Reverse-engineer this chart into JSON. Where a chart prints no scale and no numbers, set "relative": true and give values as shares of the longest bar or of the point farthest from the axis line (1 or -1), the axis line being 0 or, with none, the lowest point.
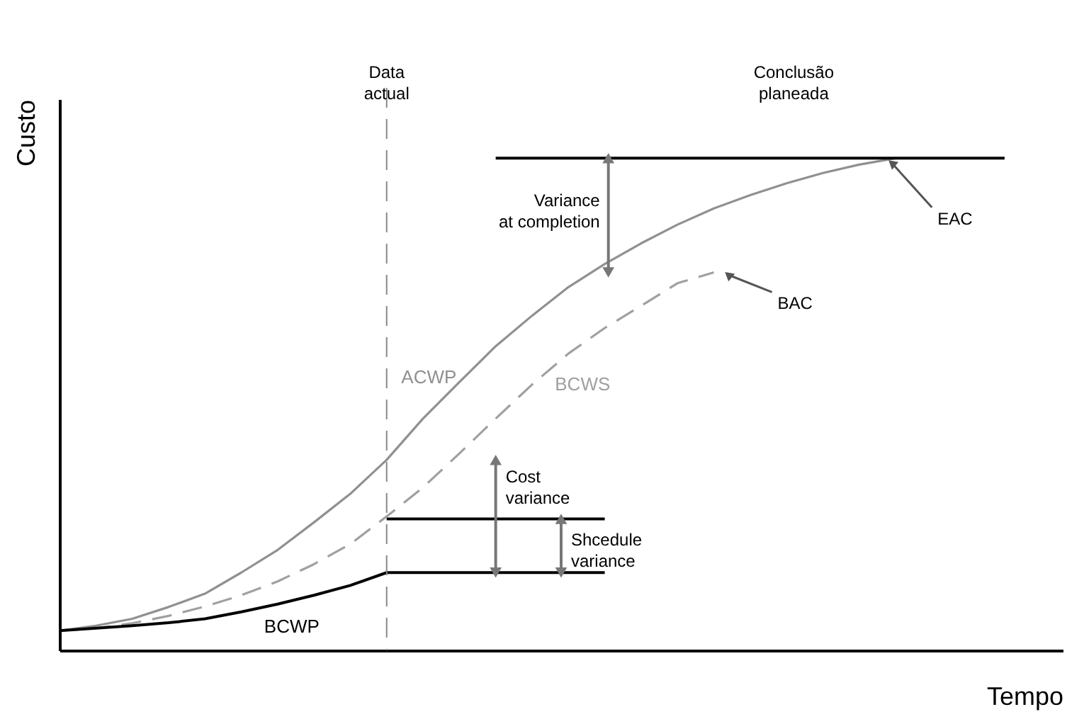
{
  "chart_data": {
    "type": "line",
    "relative": true,
    "xlabel": "Tempo",
    "ylabel": "Custo",
    "grid": false,
    "marker": "none",
    "categories": [
      null,
      null,
      null,
      null,
      null,
      null,
      null,
      null,
      null,
      null,
      null,
      null,
      null,
      null,
      null,
      null,
      null,
      null,
      null,
      null,
      null,
      null,
      null,
      null,
      null,
      null,
      null
    ],
    "series": [
      {
        "name": "ACWP",
        "color": "#909090",
        "line_style": "solid",
        "values": [
          0.04,
          0.05,
          0.064,
          0.088,
          0.115,
          0.158,
          0.204,
          0.26,
          0.318,
          0.387,
          0.471,
          0.545,
          0.618,
          0.68,
          0.738,
          0.785,
          0.827,
          0.865,
          0.898,
          0.925,
          0.949,
          0.97,
          0.987,
          1.0,
          null,
          null,
          null
        ]
      },
      {
        "name": "BCWS",
        "color": "#a0a0a0",
        "line_style": "dashed",
        "values": [
          0.04,
          0.045,
          0.055,
          0.07,
          0.089,
          0.112,
          0.14,
          0.175,
          0.216,
          0.272,
          0.331,
          0.4,
          0.471,
          0.54,
          0.603,
          0.655,
          0.7,
          0.746,
          0.768,
          null,
          null,
          null,
          null,
          null,
          null,
          null,
          null
        ]
      },
      {
        "name": "BCWP",
        "color": "#000000",
        "line_style": "solid",
        "values": [
          0.04,
          0.045,
          0.05,
          0.056,
          0.064,
          0.078,
          0.094,
          0.112,
          0.132,
          0.158,
          0.158,
          0.158,
          0.158,
          0.158,
          0.158,
          0.158,
          null,
          null,
          null,
          null,
          null,
          null,
          null,
          null,
          null,
          null,
          null
        ]
      },
      {
        "color": "#000000",
        "line_style": "solid",
        "values": [
          null,
          null,
          null,
          null,
          null,
          null,
          null,
          null,
          null,
          0.267,
          0.267,
          0.267,
          0.267,
          0.267,
          0.267,
          0.267,
          null,
          null,
          null,
          null,
          null,
          null,
          null,
          null,
          null,
          null,
          null
        ]
      },
      {
        "color": "#000000",
        "line_style": "solid",
        "values": [
          null,
          null,
          null,
          null,
          null,
          null,
          null,
          null,
          null,
          null,
          null,
          null,
          1.0,
          1.0,
          1.0,
          1.0,
          1.0,
          1.0,
          1.0,
          1.0,
          1.0,
          1.0,
          1.0,
          1.0,
          1.0,
          1.0,
          1.0
        ]
      }
    ],
    "annotations": [
      "Data actual",
      "Conclusão planeada",
      "Variance at completion",
      "Cost variance",
      "Shcedule variance",
      "EAC",
      "BAC"
    ]
  }
}
